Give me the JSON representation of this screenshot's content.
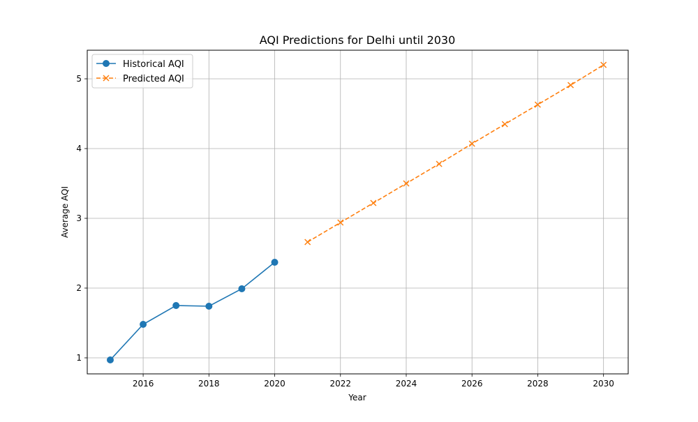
{
  "chart_data": {
    "type": "line",
    "title": "AQI Predictions for Delhi until 2030",
    "xlabel": "Year",
    "ylabel": "Average AQI",
    "xlim": [
      2014.3,
      2030.75
    ],
    "ylim": [
      0.77,
      5.41
    ],
    "xticks": [
      "2016",
      "2018",
      "2020",
      "2022",
      "2024",
      "2026",
      "2028",
      "2030"
    ],
    "yticks": [
      "1",
      "2",
      "3",
      "4",
      "5"
    ],
    "grid": true,
    "legend_position": "top-left",
    "series": [
      {
        "name": "Historical AQI",
        "color": "#1f77b4",
        "line_style": "solid",
        "marker": "circle",
        "x": [
          2015,
          2016,
          2017,
          2018,
          2019,
          2020
        ],
        "y": [
          0.97,
          1.48,
          1.75,
          1.74,
          1.99,
          2.37
        ]
      },
      {
        "name": "Predicted AQI",
        "color": "#ff7f0e",
        "line_style": "dashed",
        "marker": "x",
        "x": [
          2021,
          2022,
          2023,
          2024,
          2025,
          2026,
          2027,
          2028,
          2029,
          2030
        ],
        "y": [
          2.66,
          2.94,
          3.22,
          3.5,
          3.78,
          4.07,
          4.35,
          4.63,
          4.91,
          5.2
        ]
      }
    ]
  }
}
